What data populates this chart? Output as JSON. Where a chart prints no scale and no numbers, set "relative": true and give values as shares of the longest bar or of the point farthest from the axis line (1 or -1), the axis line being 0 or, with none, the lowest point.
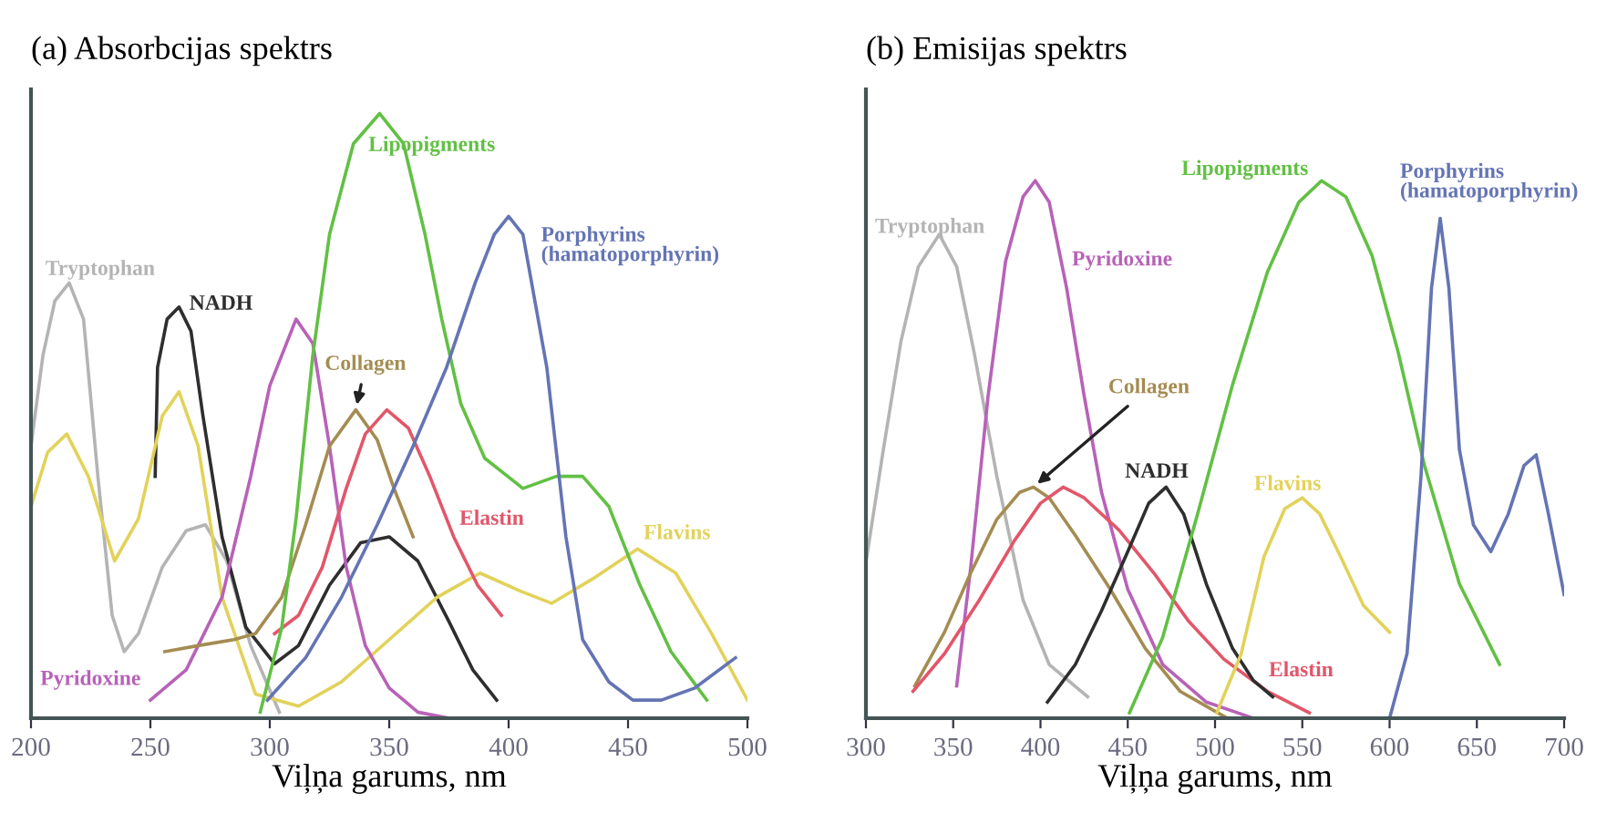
{
  "chart_data": [
    {
      "type": "line",
      "title": "(a) Absorbcijas spektrs",
      "xlabel": "Viļņa garums, nm",
      "relative": true,
      "xlim": [
        200,
        500
      ],
      "xticks": [
        200,
        250,
        300,
        350,
        400,
        450,
        500
      ],
      "grid": false,
      "legend": false,
      "series": [
        {
          "name": "Tryptophan",
          "color": "#b4b4b4",
          "x": [
            200,
            205,
            210,
            216,
            222,
            228,
            234,
            239,
            245,
            255,
            265,
            273,
            282,
            292,
            304
          ],
          "values": [
            0.45,
            0.6,
            0.69,
            0.72,
            0.66,
            0.4,
            0.17,
            0.11,
            0.14,
            0.25,
            0.31,
            0.32,
            0.26,
            0.12,
            0.01
          ]
        },
        {
          "name": "NADH",
          "color": "#2e2e2e",
          "x": [
            252,
            253,
            257,
            262,
            267,
            272,
            280,
            290,
            302,
            312,
            325,
            338,
            350,
            362,
            375,
            385,
            395
          ],
          "values": [
            0.4,
            0.58,
            0.66,
            0.68,
            0.64,
            0.5,
            0.3,
            0.15,
            0.09,
            0.12,
            0.22,
            0.29,
            0.3,
            0.26,
            0.16,
            0.08,
            0.03
          ]
        },
        {
          "name": "Flavins",
          "color": "#e2d25a",
          "x": [
            200,
            207,
            215,
            224,
            235,
            245,
            255,
            262,
            270,
            280,
            294,
            312,
            330,
            350,
            370,
            388,
            405,
            418,
            435,
            454,
            470,
            485,
            500
          ],
          "values": [
            0.35,
            0.44,
            0.47,
            0.4,
            0.26,
            0.33,
            0.5,
            0.54,
            0.45,
            0.2,
            0.04,
            0.02,
            0.06,
            0.13,
            0.2,
            0.24,
            0.21,
            0.19,
            0.23,
            0.28,
            0.24,
            0.14,
            0.03
          ]
        },
        {
          "name": "Pyridoxine",
          "color": "#b862b8",
          "x": [
            250,
            265,
            280,
            292,
            300,
            311,
            318,
            325,
            332,
            340,
            350,
            362,
            375
          ],
          "values": [
            0.03,
            0.08,
            0.2,
            0.4,
            0.55,
            0.66,
            0.62,
            0.45,
            0.25,
            0.12,
            0.05,
            0.01,
            0.0
          ]
        },
        {
          "name": "Collagen",
          "color": "#a48c52",
          "x": [
            256,
            270,
            285,
            294,
            305,
            315,
            325,
            336,
            345,
            352,
            360
          ],
          "values": [
            0.11,
            0.12,
            0.13,
            0.14,
            0.2,
            0.32,
            0.45,
            0.51,
            0.46,
            0.38,
            0.3
          ]
        },
        {
          "name": "Elastin",
          "color": "#e2566a",
          "x": [
            302,
            312,
            322,
            332,
            340,
            349,
            358,
            367,
            377,
            387,
            397
          ],
          "values": [
            0.14,
            0.17,
            0.25,
            0.38,
            0.47,
            0.51,
            0.48,
            0.4,
            0.3,
            0.22,
            0.17
          ]
        },
        {
          "name": "Lipopigments",
          "color": "#62c044",
          "x": [
            296,
            305,
            311,
            318,
            325,
            335,
            346,
            356,
            365,
            372,
            380,
            390,
            406,
            420,
            431,
            442,
            455,
            468,
            483
          ],
          "values": [
            0.01,
            0.15,
            0.33,
            0.6,
            0.8,
            0.95,
            1.0,
            0.95,
            0.8,
            0.66,
            0.52,
            0.43,
            0.38,
            0.4,
            0.4,
            0.35,
            0.22,
            0.11,
            0.03
          ]
        },
        {
          "name": "Porphyrins\n(hamatoporphyrin)",
          "color": "#6474b4",
          "x": [
            299,
            315,
            330,
            345,
            360,
            374,
            386,
            394,
            400,
            406,
            416,
            424,
            431,
            442,
            452,
            464,
            478,
            495
          ],
          "values": [
            0.03,
            0.1,
            0.2,
            0.32,
            0.45,
            0.58,
            0.72,
            0.8,
            0.83,
            0.8,
            0.58,
            0.3,
            0.13,
            0.06,
            0.03,
            0.03,
            0.05,
            0.1
          ]
        }
      ]
    },
    {
      "type": "line",
      "title": "(b) Emisijas spektrs",
      "xlabel": "Viļņa garums, nm",
      "relative": true,
      "xlim": [
        300,
        700
      ],
      "xticks": [
        300,
        350,
        400,
        450,
        500,
        550,
        600,
        650,
        700
      ],
      "grid": false,
      "legend": false,
      "series": [
        {
          "name": "Tryptophan",
          "color": "#b4b4b4",
          "x": [
            300,
            310,
            320,
            330,
            342,
            352,
            362,
            375,
            390,
            405,
            427
          ],
          "values": [
            0.29,
            0.5,
            0.7,
            0.84,
            0.9,
            0.84,
            0.68,
            0.45,
            0.22,
            0.1,
            0.04
          ]
        },
        {
          "name": "Pyridoxine",
          "color": "#b862b8",
          "x": [
            352,
            360,
            370,
            380,
            390,
            397,
            405,
            415,
            425,
            435,
            450,
            470,
            495,
            522
          ],
          "values": [
            0.06,
            0.28,
            0.6,
            0.85,
            0.97,
            1.0,
            0.96,
            0.8,
            0.6,
            0.42,
            0.24,
            0.1,
            0.03,
            0.0
          ]
        },
        {
          "name": "Collagen",
          "color": "#a48c52",
          "x": [
            328,
            345,
            360,
            375,
            388,
            396,
            405,
            420,
            440,
            460,
            480,
            507
          ],
          "values": [
            0.06,
            0.16,
            0.27,
            0.37,
            0.42,
            0.43,
            0.41,
            0.34,
            0.24,
            0.13,
            0.05,
            0.0
          ]
        },
        {
          "name": "Elastin",
          "color": "#e2566a",
          "x": [
            327,
            345,
            365,
            385,
            400,
            413,
            425,
            445,
            465,
            485,
            505,
            530,
            554
          ],
          "values": [
            0.05,
            0.12,
            0.22,
            0.33,
            0.4,
            0.43,
            0.41,
            0.35,
            0.27,
            0.18,
            0.11,
            0.05,
            0.01
          ]
        },
        {
          "name": "NADH",
          "color": "#2e2e2e",
          "x": [
            404,
            420,
            435,
            450,
            462,
            472,
            482,
            495,
            510,
            522,
            533
          ],
          "values": [
            0.03,
            0.1,
            0.2,
            0.31,
            0.4,
            0.43,
            0.38,
            0.25,
            0.13,
            0.07,
            0.04
          ]
        },
        {
          "name": "Flavins",
          "color": "#e2d25a",
          "x": [
            501,
            515,
            528,
            540,
            550,
            560,
            572,
            585,
            600
          ],
          "values": [
            0.01,
            0.12,
            0.3,
            0.39,
            0.41,
            0.38,
            0.3,
            0.21,
            0.16
          ]
        },
        {
          "name": "Lipopigments",
          "color": "#62c044",
          "x": [
            451,
            470,
            490,
            510,
            530,
            548,
            561,
            575,
            590,
            605,
            620,
            640,
            663
          ],
          "values": [
            0.01,
            0.15,
            0.38,
            0.62,
            0.83,
            0.96,
            1.0,
            0.97,
            0.86,
            0.68,
            0.47,
            0.25,
            0.1
          ]
        },
        {
          "name": "Porphyrins\n(hamatoporphyrin)",
          "color": "#6474b4",
          "x": [
            600,
            610,
            618,
            624,
            629,
            634,
            640,
            648,
            658,
            668,
            677,
            684,
            691,
            700
          ],
          "values": [
            0.0,
            0.12,
            0.45,
            0.8,
            0.93,
            0.8,
            0.5,
            0.36,
            0.31,
            0.38,
            0.47,
            0.49,
            0.38,
            0.23
          ]
        }
      ]
    }
  ]
}
